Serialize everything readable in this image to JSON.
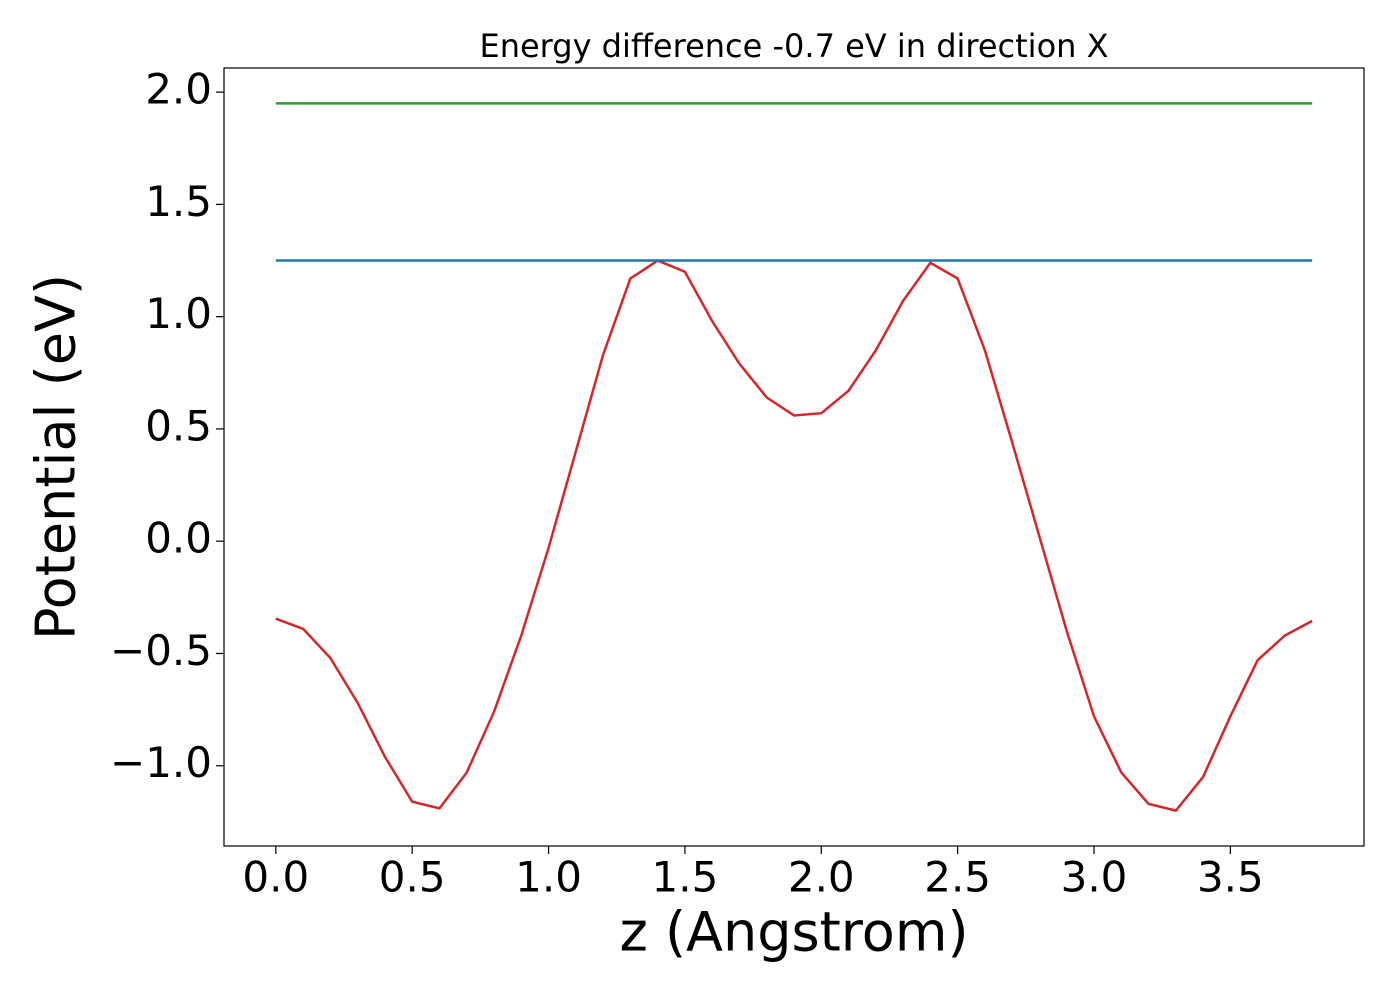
{
  "chart_data": {
    "type": "line",
    "title": "Energy difference -0.7 eV in direction X",
    "xlabel": "z (Angstrom)",
    "ylabel": "Potential (eV)",
    "series": [
      {
        "color": "#d62728",
        "x": [
          0,
          0.1,
          0.2,
          0.3,
          0.4,
          0.5,
          0.6,
          0.7,
          0.8,
          0.9,
          1.0,
          1.1,
          1.2,
          1.3,
          1.4,
          1.5,
          1.6,
          1.7,
          1.8,
          1.9,
          2.0,
          2.1,
          2.2,
          2.3,
          2.4,
          2.5,
          2.6,
          2.7,
          2.8,
          2.9,
          3.0,
          3.1,
          3.2,
          3.3,
          3.4,
          3.5,
          3.6,
          3.7,
          3.8
        ],
        "values": [
          -0.345,
          -0.39,
          -0.52,
          -0.72,
          -0.96,
          -1.16,
          -1.19,
          -1.03,
          -0.76,
          -0.42,
          -0.03,
          0.4,
          0.83,
          1.17,
          1.25,
          1.2,
          0.98,
          0.79,
          0.64,
          0.56,
          0.57,
          0.67,
          0.85,
          1.07,
          1.24,
          1.17,
          0.85,
          0.44,
          0.02,
          -0.4,
          -0.78,
          -1.03,
          -1.17,
          -1.2,
          -1.05,
          -0.78,
          -0.53,
          -0.42,
          -0.355
        ]
      },
      {
        "color": "#1f77b4",
        "x": [
          0,
          3.8
        ],
        "values": [
          1.25,
          1.25
        ]
      },
      {
        "color": "#2ca02c",
        "x": [
          0,
          3.8
        ],
        "values": [
          1.95,
          1.95
        ]
      }
    ],
    "xlim": [
      -0.19,
      3.99
    ],
    "ylim": [
      -1.3575,
      2.1075
    ],
    "xticks": [
      {
        "value": 0,
        "label": "0.0"
      },
      {
        "value": 0.5,
        "label": "0.5"
      },
      {
        "value": 1,
        "label": "1.0"
      },
      {
        "value": 1.5,
        "label": "1.5"
      },
      {
        "value": 2,
        "label": "2.0"
      },
      {
        "value": 2.5,
        "label": "2.5"
      },
      {
        "value": 3,
        "label": "3.0"
      },
      {
        "value": 3.5,
        "label": "3.5"
      }
    ],
    "yticks": [
      {
        "value": -1,
        "label": "−1.0"
      },
      {
        "value": -0.5,
        "label": "−0.5"
      },
      {
        "value": 0,
        "label": "0.0"
      },
      {
        "value": 0.5,
        "label": "0.5"
      },
      {
        "value": 1,
        "label": "1.0"
      },
      {
        "value": 1.5,
        "label": "1.5"
      },
      {
        "value": 2,
        "label": "2.0"
      }
    ],
    "grid": false
  }
}
